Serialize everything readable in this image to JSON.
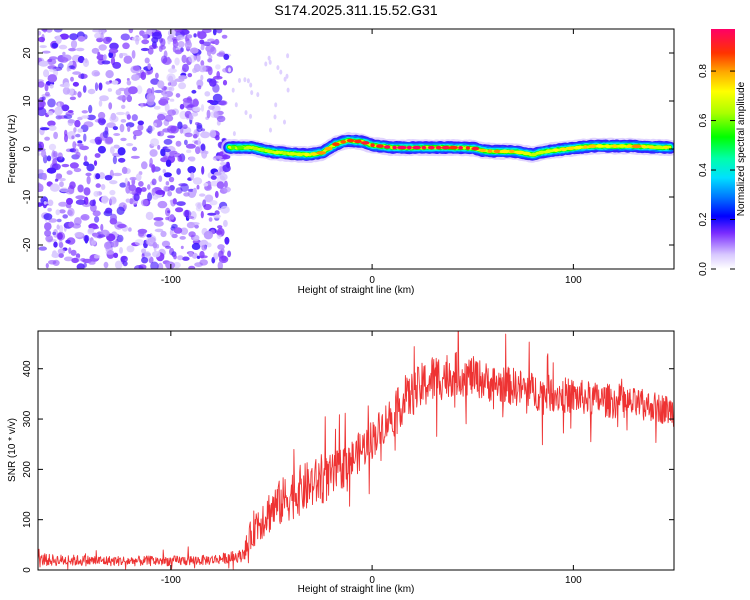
{
  "title": "S174.2025.311.15.52.G31",
  "chart_data": [
    {
      "type": "heatmap",
      "xlabel": "Height of straight line (km)",
      "ylabel": "Frequency (Hz)",
      "xlim": [
        -166,
        150
      ],
      "ylim": [
        -25,
        25
      ],
      "xticks": [
        -100,
        0,
        100
      ],
      "yticks": [
        20,
        10,
        0,
        -10,
        -20
      ],
      "colorbar": {
        "label": "Normalized spectral amplitude",
        "range": [
          0,
          0.97
        ],
        "ticks": [
          0.0,
          0.2,
          0.4,
          0.6,
          0.8
        ]
      },
      "noise_region_x": [
        -166,
        -71
      ],
      "ridge": {
        "x": [
          -71,
          -60,
          -50,
          -40,
          -32,
          -25,
          -18,
          -12,
          -5,
          0,
          10,
          20,
          30,
          40,
          50,
          55,
          60,
          65,
          70,
          75,
          80,
          85,
          90,
          100,
          110,
          120,
          130,
          140,
          148
        ],
        "y": [
          0.3,
          0.3,
          -0.6,
          -1.0,
          -1.2,
          -0.8,
          1.0,
          1.8,
          1.5,
          0.8,
          0.3,
          0.3,
          0.3,
          0.3,
          0.2,
          -0.3,
          -0.5,
          -0.5,
          -0.5,
          -0.8,
          -1.2,
          -0.6,
          -0.3,
          0.2,
          0.6,
          0.6,
          0.6,
          0.4,
          0.3
        ],
        "amplitude": [
          0.6,
          0.7,
          0.65,
          0.7,
          0.75,
          0.8,
          0.85,
          0.85,
          0.9,
          0.92,
          0.95,
          0.97,
          0.97,
          0.95,
          0.9,
          0.85,
          0.8,
          0.8,
          0.75,
          0.7,
          0.65,
          0.7,
          0.75,
          0.8,
          0.8,
          0.75,
          0.8,
          0.75,
          0.7
        ]
      }
    },
    {
      "type": "line",
      "xlabel": "Height of straight line (km)",
      "ylabel": "SNR (10 * v/v)",
      "xlim": [
        -166,
        150
      ],
      "ylim": [
        0,
        475
      ],
      "xticks": [
        -100,
        0,
        100
      ],
      "yticks": [
        0,
        100,
        200,
        300,
        400
      ],
      "color": "#ee3333",
      "series": [
        {
          "name": "SNR",
          "envelope_x": [
            -166,
            -130,
            -100,
            -80,
            -65,
            -62,
            -58,
            -50,
            -40,
            -30,
            -20,
            -10,
            0,
            10,
            20,
            30,
            40,
            50,
            60,
            70,
            80,
            90,
            100,
            110,
            120,
            130,
            140,
            150
          ],
          "envelope_y": [
            20,
            18,
            18,
            20,
            28,
            50,
            90,
            120,
            150,
            170,
            185,
            220,
            260,
            310,
            350,
            380,
            390,
            385,
            370,
            365,
            355,
            350,
            345,
            340,
            335,
            330,
            325,
            315
          ],
          "noise_amplitude": [
            12,
            10,
            10,
            10,
            12,
            25,
            40,
            45,
            50,
            50,
            45,
            40,
            40,
            40,
            45,
            50,
            45,
            40,
            38,
            38,
            38,
            36,
            36,
            34,
            34,
            32,
            30,
            30
          ]
        }
      ]
    }
  ]
}
